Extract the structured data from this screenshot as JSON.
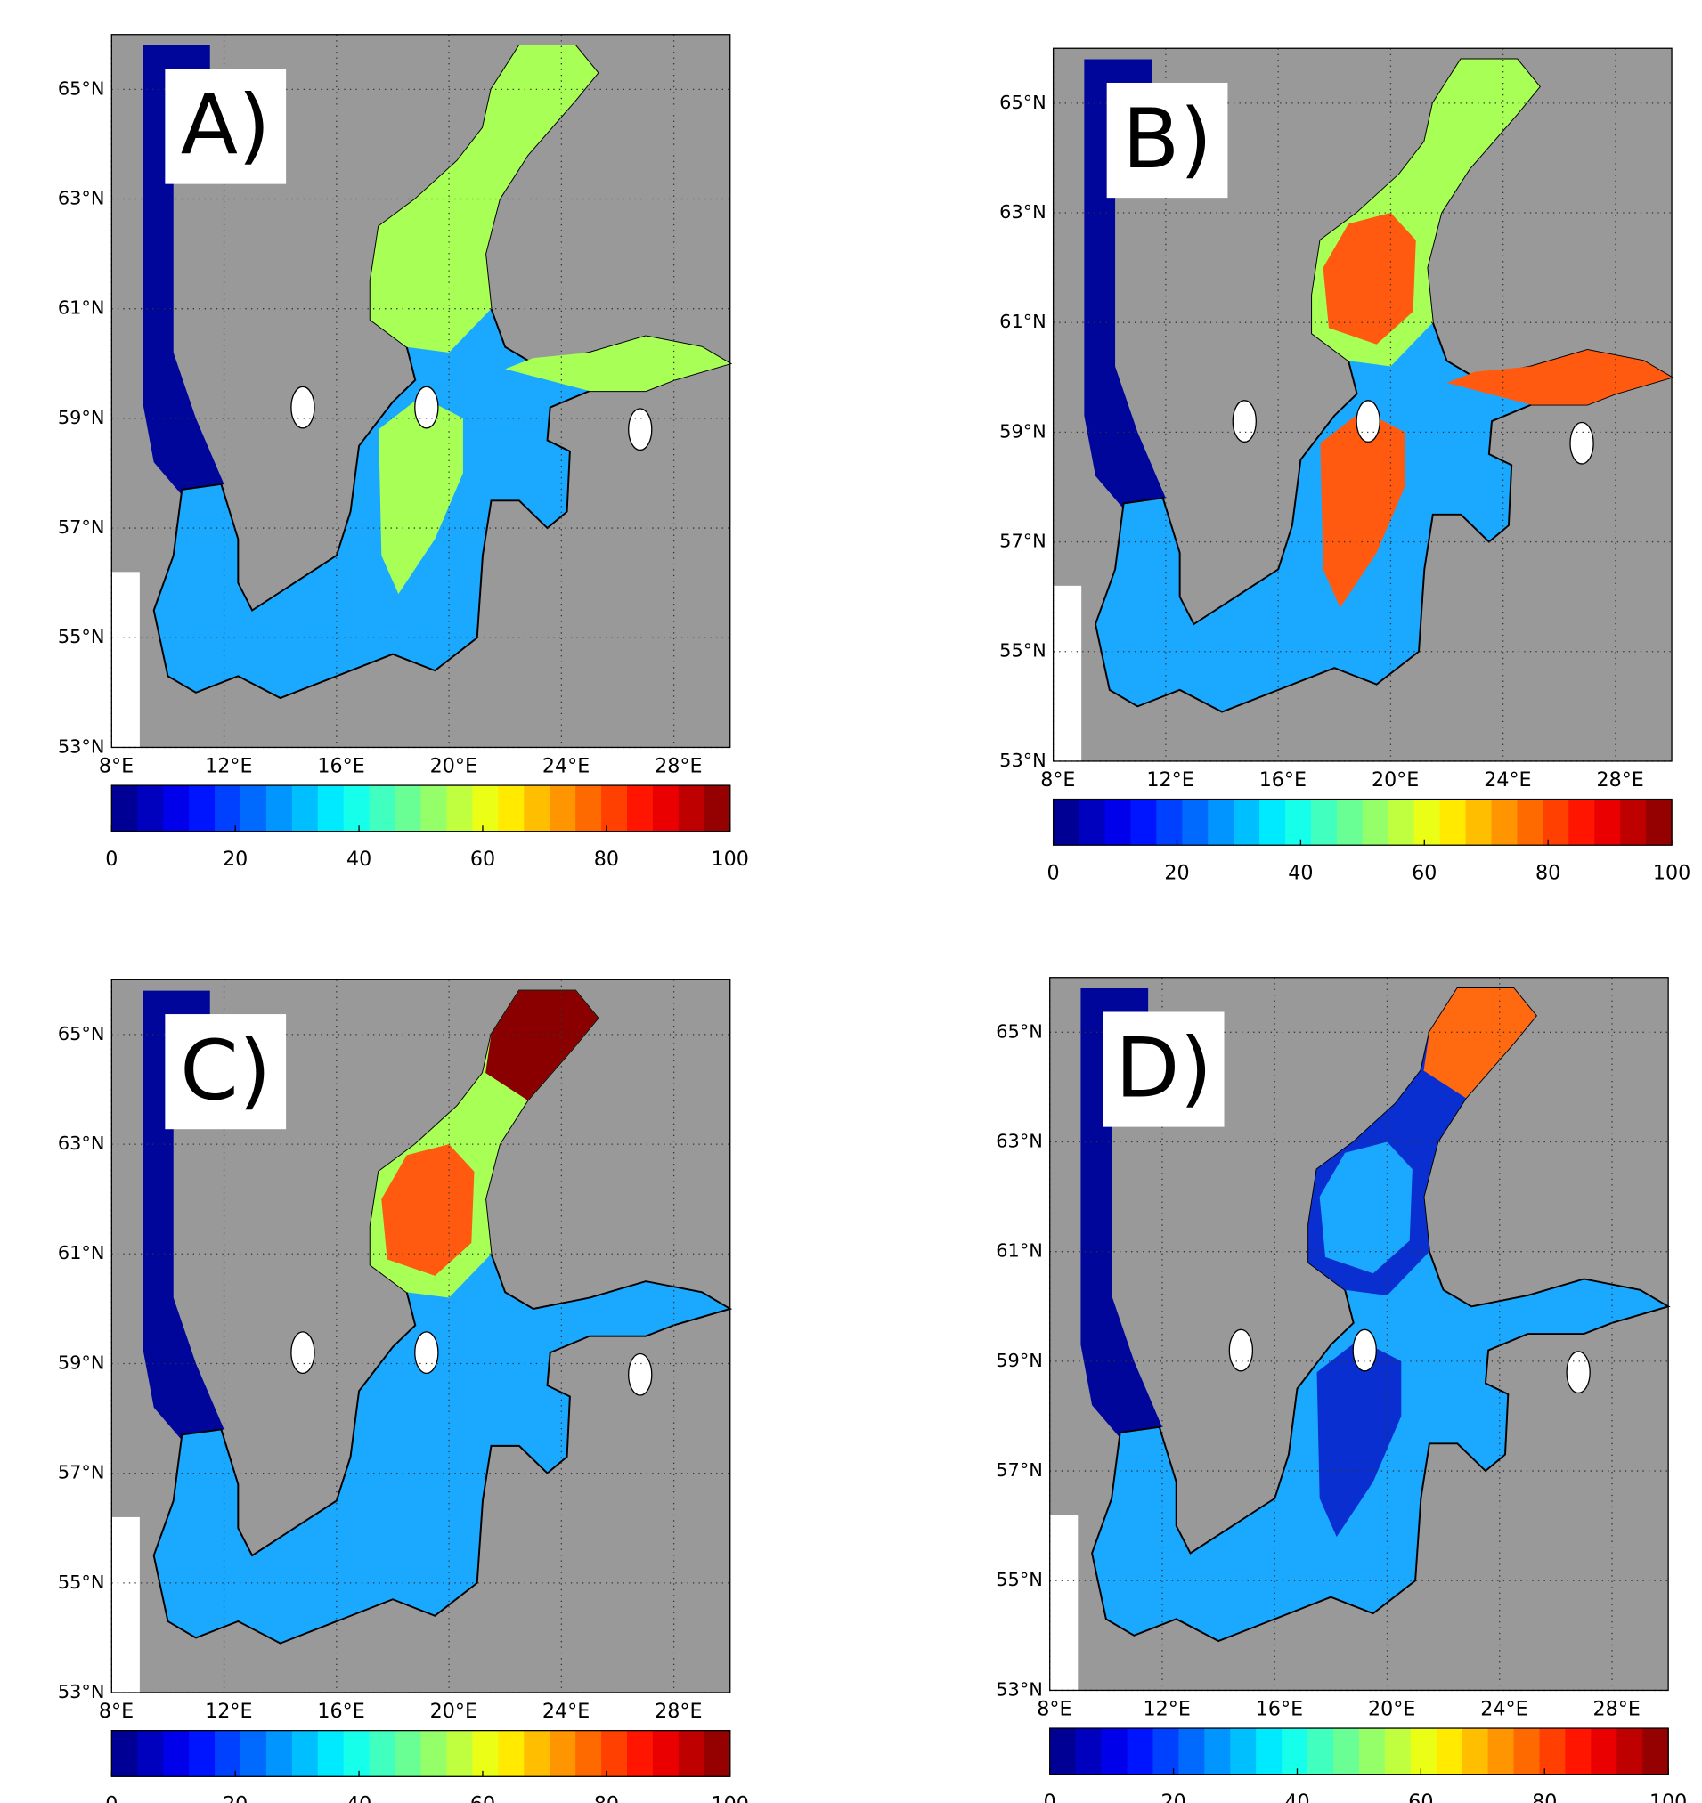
{
  "panels": [
    {
      "label": "A)"
    },
    {
      "label": "B)"
    },
    {
      "label": "C)"
    },
    {
      "label": "D)"
    }
  ],
  "xlim": [
    8,
    30
  ],
  "ylim": [
    53,
    66
  ],
  "lat_ticks": [
    {
      "value": 53,
      "label": "53°N"
    },
    {
      "value": 55,
      "label": "55°N"
    },
    {
      "value": 57,
      "label": "57°N"
    },
    {
      "value": 59,
      "label": "59°N"
    },
    {
      "value": 61,
      "label": "61°N"
    },
    {
      "value": 63,
      "label": "63°N"
    },
    {
      "value": 65,
      "label": "65°N"
    }
  ],
  "lon_ticks": [
    {
      "value": 8,
      "label": "8°E"
    },
    {
      "value": 12,
      "label": "12°E"
    },
    {
      "value": 16,
      "label": "16°E"
    },
    {
      "value": 20,
      "label": "20°E"
    },
    {
      "value": 24,
      "label": "24°E"
    },
    {
      "value": 28,
      "label": "28°E"
    }
  ],
  "colorbar": {
    "lim": [
      0,
      100
    ],
    "ticks": [
      0,
      20,
      40,
      60,
      80,
      100
    ]
  }
}
